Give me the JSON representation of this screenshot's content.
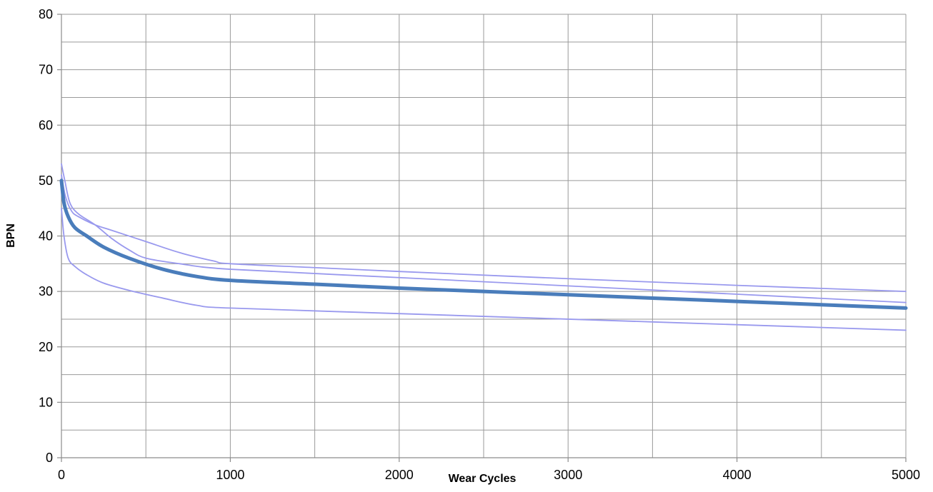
{
  "chart_data": {
    "type": "line",
    "title": "",
    "xlabel": "Wear Cycles",
    "ylabel": "BPN",
    "xlim": [
      0,
      5000
    ],
    "ylim": [
      0,
      80
    ],
    "x_ticks": [
      0,
      1000,
      2000,
      3000,
      4000,
      5000
    ],
    "y_ticks": [
      0,
      10,
      20,
      30,
      40,
      50,
      60,
      70,
      80
    ],
    "grid": true,
    "legend": "none",
    "series": [
      {
        "color": "#9999ee",
        "line_width": "thin",
        "points": [
          [
            0,
            51
          ],
          [
            25,
            47
          ],
          [
            60,
            44.5
          ],
          [
            100,
            43.5
          ],
          [
            200,
            42
          ],
          [
            300,
            41
          ],
          [
            500,
            39
          ],
          [
            700,
            37
          ],
          [
            900,
            35.5
          ],
          [
            1000,
            35
          ],
          [
            1500,
            34.3
          ],
          [
            2000,
            33.6
          ],
          [
            3000,
            32.3
          ],
          [
            4000,
            31.1
          ],
          [
            5000,
            30
          ]
        ]
      },
      {
        "color": "#9999ee",
        "line_width": "thin",
        "points": [
          [
            0,
            53
          ],
          [
            20,
            50
          ],
          [
            50,
            46
          ],
          [
            100,
            44
          ],
          [
            200,
            42
          ],
          [
            300,
            39.5
          ],
          [
            400,
            37.5
          ],
          [
            500,
            36
          ],
          [
            700,
            35
          ],
          [
            1000,
            34
          ],
          [
            2000,
            32.5
          ],
          [
            3000,
            31
          ],
          [
            4000,
            29.5
          ],
          [
            5000,
            28
          ]
        ]
      },
      {
        "color": "#4a7dbb",
        "line_width": "thick",
        "points": [
          [
            0,
            50
          ],
          [
            15,
            46
          ],
          [
            40,
            43.5
          ],
          [
            80,
            41.5
          ],
          [
            150,
            40
          ],
          [
            250,
            38
          ],
          [
            400,
            36
          ],
          [
            600,
            34
          ],
          [
            800,
            32.7
          ],
          [
            1000,
            32
          ],
          [
            1500,
            31.3
          ],
          [
            2000,
            30.6
          ],
          [
            2500,
            30
          ],
          [
            3000,
            29.4
          ],
          [
            3500,
            28.8
          ],
          [
            4000,
            28.2
          ],
          [
            4500,
            27.6
          ],
          [
            5000,
            27
          ]
        ]
      },
      {
        "color": "#9999ee",
        "line_width": "thin",
        "points": [
          [
            0,
            45
          ],
          [
            15,
            40
          ],
          [
            40,
            36
          ],
          [
            80,
            34.5
          ],
          [
            150,
            33
          ],
          [
            250,
            31.5
          ],
          [
            400,
            30.2
          ],
          [
            600,
            28.8
          ],
          [
            800,
            27.5
          ],
          [
            1000,
            27
          ],
          [
            2000,
            26
          ],
          [
            3000,
            25
          ],
          [
            4000,
            24
          ],
          [
            5000,
            23
          ]
        ]
      }
    ]
  }
}
